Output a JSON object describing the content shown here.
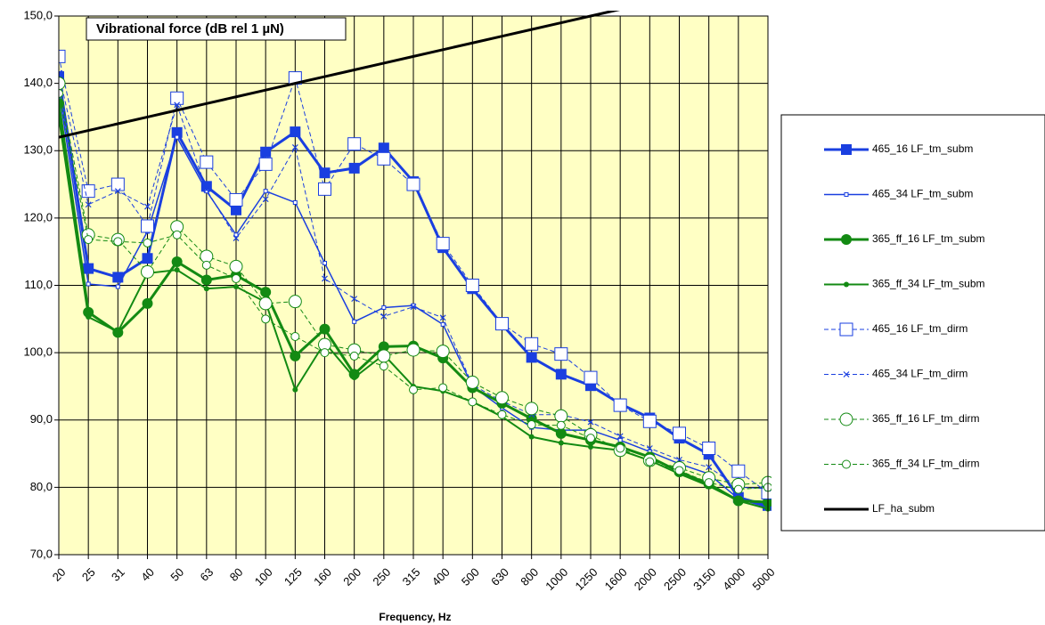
{
  "chart_data": {
    "type": "line",
    "title": "Vibrational force (dB rel 1 µN)",
    "x_label": "Frequency, Hz",
    "categories": [
      "20",
      "25",
      "31",
      "40",
      "50",
      "63",
      "80",
      "100",
      "125",
      "160",
      "200",
      "250",
      "315",
      "400",
      "500",
      "630",
      "800",
      "1000",
      "1250",
      "1600",
      "2000",
      "2500",
      "3150",
      "4000",
      "5000"
    ],
    "ylim": [
      70,
      150
    ],
    "yticks": [
      {
        "value": 70,
        "label": "70,0"
      },
      {
        "value": 80,
        "label": "80,0"
      },
      {
        "value": 90,
        "label": "90,0"
      },
      {
        "value": 100,
        "label": "100,0"
      },
      {
        "value": 110,
        "label": "110,0"
      },
      {
        "value": 120,
        "label": "120,0"
      },
      {
        "value": 130,
        "label": "130,0"
      },
      {
        "value": 140,
        "label": "140,0"
      },
      {
        "value": 150,
        "label": "150,0"
      }
    ],
    "grid": true,
    "legend": "right",
    "series": [
      {
        "name": "465_16 LF_tm_subm",
        "color": "#1a3fe0",
        "marker": "square-filled",
        "dashed": false,
        "width": 3,
        "values": [
          141,
          112.5,
          111.2,
          114,
          132.7,
          124.7,
          121.2,
          129.8,
          132.8,
          126.7,
          127.4,
          130.4,
          125.4,
          115.6,
          109.5,
          104.2,
          99.3,
          96.8,
          95.1,
          92.4,
          90.3,
          87.3,
          84.9,
          78.5,
          77.3
        ]
      },
      {
        "name": "465_34 LF_tm_subm",
        "color": "#1a3fe0",
        "marker": "square-small",
        "dashed": false,
        "width": 1.5,
        "values": [
          139,
          110.2,
          109.8,
          118,
          132,
          124,
          117.5,
          124,
          122.3,
          113.3,
          104.6,
          106.7,
          107,
          104.2,
          95,
          91.8,
          88.9,
          88.5,
          88.5,
          87,
          85.3,
          83.5,
          82,
          78.3,
          77
        ]
      },
      {
        "name": "365_ff_16 LF_tm_subm",
        "color": "#138a13",
        "marker": "circle-filled",
        "dashed": false,
        "width": 3,
        "values": [
          137,
          106,
          103,
          107.3,
          113.5,
          110.8,
          111.5,
          109,
          99.5,
          103.5,
          96.8,
          100.9,
          101,
          99.2,
          94.8,
          92.5,
          90.2,
          88,
          87,
          86,
          84.5,
          82.3,
          80.5,
          78,
          77.8
        ]
      },
      {
        "name": "365_ff_34 LF_tm_subm",
        "color": "#138a13",
        "marker": "circle-small",
        "dashed": false,
        "width": 2,
        "values": [
          135,
          105.3,
          103.1,
          111.8,
          112.3,
          109.5,
          109.8,
          107.5,
          94.5,
          101.5,
          96.3,
          99.7,
          95,
          94.3,
          92.7,
          90.5,
          87.5,
          86.6,
          86,
          85.5,
          84,
          82,
          80.2,
          78,
          76.8
        ]
      },
      {
        "name": "465_16 LF_tm_dirm",
        "color": "#1a3fe0",
        "marker": "square-open",
        "dashed": true,
        "width": 1,
        "values": [
          144,
          124,
          125,
          118.8,
          137.8,
          128.3,
          122.7,
          128,
          140.8,
          124.3,
          131,
          128.8,
          125,
          116.2,
          110,
          104.3,
          101.3,
          99.8,
          96.3,
          92.2,
          89.8,
          88,
          85.8,
          82.4,
          79.2
        ]
      },
      {
        "name": "465_34 LF_tm_dirm",
        "color": "#1a3fe0",
        "marker": "cross",
        "dashed": true,
        "width": 1,
        "values": [
          141.5,
          122,
          124,
          121.7,
          136.8,
          124.2,
          117,
          122.8,
          130.5,
          111,
          108,
          105.4,
          106.8,
          105.2,
          95.2,
          92.8,
          90.8,
          90.8,
          89.7,
          87.6,
          85.8,
          84.1,
          83,
          80,
          79.8
        ]
      },
      {
        "name": "365_ff_16 LF_tm_dirm",
        "color": "#138a13",
        "marker": "circle-open",
        "dashed": true,
        "width": 1,
        "values": [
          140,
          117.5,
          116.8,
          112,
          118.7,
          114.3,
          112.8,
          107.3,
          107.6,
          101.2,
          100.4,
          99.5,
          100.4,
          100.2,
          95.6,
          93.3,
          91.7,
          90.6,
          87.8,
          85.5,
          84,
          82.9,
          81.4,
          80.4,
          80.7
        ]
      },
      {
        "name": "365_ff_34 LF_tm_dirm",
        "color": "#138a13",
        "marker": "circle-open-small",
        "dashed": true,
        "width": 1,
        "values": [
          138.5,
          116.8,
          116.5,
          116.3,
          117.5,
          113,
          111,
          105,
          102.4,
          100,
          99.5,
          98,
          94.5,
          94.8,
          92.7,
          90.8,
          89.3,
          89.2,
          87.3,
          85.8,
          83.8,
          82.5,
          80.7,
          79.7,
          80
        ]
      },
      {
        "name": "LF_ha_subm",
        "color": "#000000",
        "marker": "none",
        "dashed": false,
        "width": 3,
        "values": [
          132,
          133,
          134,
          135,
          136,
          137,
          138,
          139,
          140,
          141,
          142,
          143,
          144,
          145,
          146,
          147,
          148,
          149,
          150,
          151,
          151,
          151,
          151,
          151,
          151
        ]
      }
    ]
  }
}
